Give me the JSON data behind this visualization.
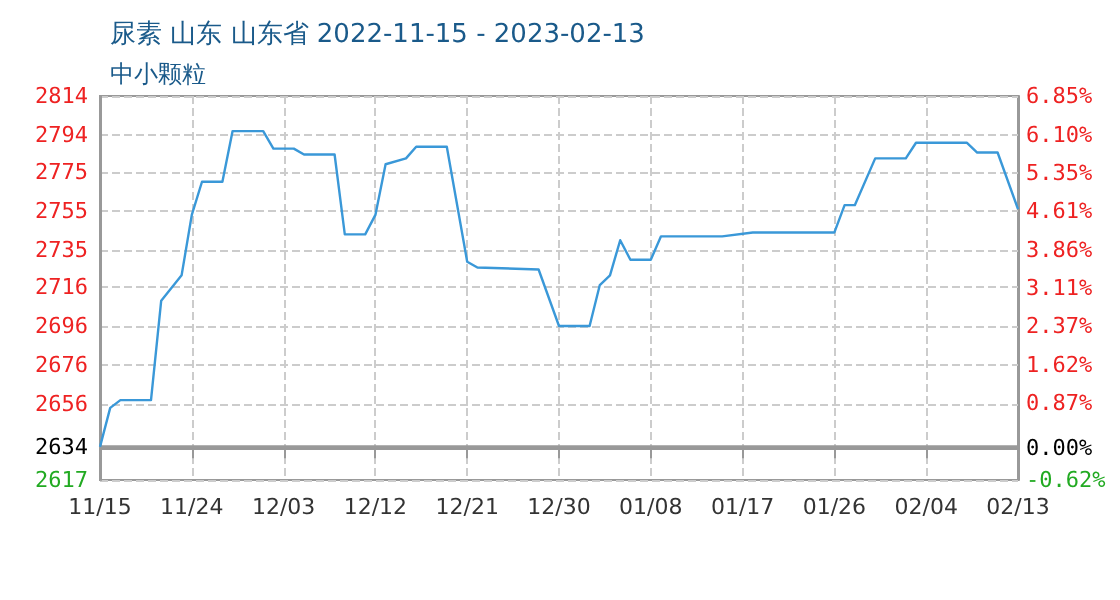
{
  "chart_data": {
    "type": "line",
    "title": "尿素 山东 山东省 2022-11-15 - 2023-02-13",
    "subtitle": "中小颗粒",
    "x": [
      "2022-11-15",
      "2022-11-16",
      "2022-11-17",
      "2022-11-20",
      "2022-11-21",
      "2022-11-23",
      "2022-11-24",
      "2022-11-25",
      "2022-11-27",
      "2022-11-28",
      "2022-12-01",
      "2022-12-02",
      "2022-12-04",
      "2022-12-05",
      "2022-12-08",
      "2022-12-09",
      "2022-12-11",
      "2022-12-12",
      "2022-12-13",
      "2022-12-15",
      "2022-12-16",
      "2022-12-19",
      "2022-12-21",
      "2022-12-22",
      "2022-12-28",
      "2022-12-30",
      "2023-01-02",
      "2023-01-03",
      "2023-01-04",
      "2023-01-05",
      "2023-01-06",
      "2023-01-08",
      "2023-01-09",
      "2023-01-15",
      "2023-01-18",
      "2023-01-26",
      "2023-01-27",
      "2023-01-28",
      "2023-01-30",
      "2023-02-02",
      "2023-02-03",
      "2023-02-08",
      "2023-02-09",
      "2023-02-11",
      "2023-02-13"
    ],
    "series": [
      {
        "color": "#3a98d8",
        "values": [
          2634,
          2654,
          2658,
          2658,
          2709,
          2722,
          2753,
          2770,
          2770,
          2796,
          2796,
          2787,
          2787,
          2784,
          2784,
          2743,
          2743,
          2753,
          2779,
          2782,
          2788,
          2788,
          2729,
          2726,
          2725,
          2696,
          2696,
          2717,
          2722,
          2740,
          2730,
          2730,
          2742,
          2742,
          2744,
          2744,
          2758,
          2758,
          2782,
          2782,
          2790,
          2790,
          2785,
          2785,
          2756
        ]
      }
    ],
    "xlim": [
      "2022-11-15",
      "2023-02-13"
    ],
    "xticks": [
      {
        "value": "2022-11-15",
        "label": "11/15"
      },
      {
        "value": "2022-11-24",
        "label": "11/24"
      },
      {
        "value": "2022-12-03",
        "label": "12/03"
      },
      {
        "value": "2022-12-12",
        "label": "12/12"
      },
      {
        "value": "2022-12-21",
        "label": "12/21"
      },
      {
        "value": "2022-12-30",
        "label": "12/30"
      },
      {
        "value": "2023-01-08",
        "label": "01/08"
      },
      {
        "value": "2023-01-17",
        "label": "01/17"
      },
      {
        "value": "2023-01-26",
        "label": "01/26"
      },
      {
        "value": "2023-02-04",
        "label": "02/04"
      },
      {
        "value": "2023-02-13",
        "label": "02/13"
      }
    ],
    "ylim": [
      2617,
      2814
    ],
    "yticks": [
      2617,
      2634,
      2656,
      2676,
      2696,
      2716,
      2735,
      2755,
      2775,
      2794,
      2814
    ],
    "y2lim": [
      -0.62,
      6.85
    ],
    "y2ticks": [
      {
        "value": -0.62,
        "label": "-0.62%"
      },
      {
        "value": 0,
        "label": "0.00%"
      },
      {
        "value": 0.87,
        "label": "0.87%"
      },
      {
        "value": 1.62,
        "label": "1.62%"
      },
      {
        "value": 2.37,
        "label": "2.37%"
      },
      {
        "value": 3.11,
        "label": "3.11%"
      },
      {
        "value": 3.86,
        "label": "3.86%"
      },
      {
        "value": 4.61,
        "label": "4.61%"
      },
      {
        "value": 5.35,
        "label": "5.35%"
      },
      {
        "value": 6.1,
        "label": "6.10%"
      },
      {
        "value": 6.85,
        "label": "6.85%"
      }
    ],
    "ref_lines": [
      {
        "axis": "y",
        "value": 2634,
        "color": "#999999",
        "line_style": "solid"
      }
    ],
    "grid": true,
    "marker": "none",
    "line_style": "solid"
  }
}
